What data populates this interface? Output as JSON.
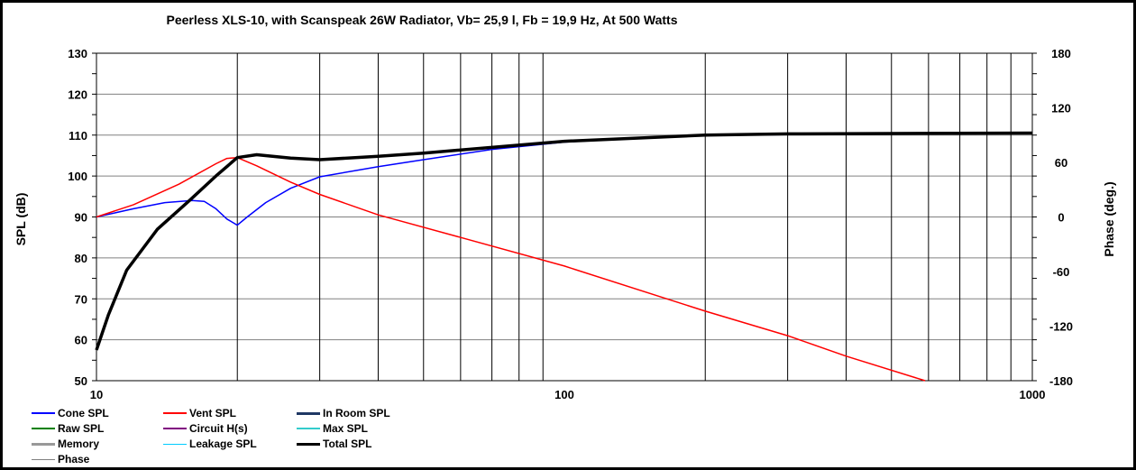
{
  "chart_data": {
    "type": "line",
    "title": "Peerless XLS-10,  with Scanspeak 26W Radiator, Vb= 25,9 l,  Fb = 19,9 Hz,  At 500 Watts",
    "ylabel": "SPL (dB)",
    "y2label": "Phase (deg.)",
    "xscale": "log",
    "xlim": [
      10,
      1000
    ],
    "ylim": [
      50,
      130
    ],
    "y2lim": [
      -180,
      180
    ],
    "xticks": [
      "10",
      "100",
      "1000"
    ],
    "yticks": [
      "130",
      "120",
      "110",
      "100",
      "90",
      "80",
      "70",
      "60",
      "50"
    ],
    "y2ticks": [
      "180",
      "120",
      "60",
      "0",
      "-60",
      "-120",
      "-180"
    ],
    "grid": true,
    "series": [
      {
        "name": "Cone SPL",
        "color": "#0000ff",
        "x": [
          10,
          12,
          14,
          16,
          17,
          18,
          19,
          20,
          21,
          23,
          26,
          30,
          40,
          50,
          70,
          100,
          200,
          1000
        ],
        "y": [
          90,
          92,
          93.5,
          94,
          93.8,
          92,
          89.5,
          88,
          90,
          93.5,
          97,
          99.8,
          102.3,
          104,
          106.5,
          108.3,
          110,
          110.5
        ]
      },
      {
        "name": "Vent SPL",
        "color": "#ff0000",
        "x": [
          10,
          12,
          15,
          18,
          19,
          20,
          22,
          26,
          30,
          40,
          60,
          100,
          200,
          300,
          400,
          590
        ],
        "y": [
          90,
          93,
          98,
          103,
          104.3,
          104.5,
          102.5,
          98.5,
          95.5,
          90.5,
          85,
          78,
          67,
          61,
          56,
          50
        ]
      },
      {
        "name": "Total SPL",
        "color": "#000000",
        "x": [
          10,
          10.6,
          11.6,
          13.5,
          15.8,
          18,
          20,
          22,
          26,
          30,
          40,
          50,
          100,
          200,
          300,
          1000
        ],
        "y": [
          57.5,
          66,
          77,
          87,
          94,
          100,
          104.5,
          105.2,
          104.4,
          104,
          104.8,
          105.6,
          108.5,
          110,
          110.3,
          110.5
        ]
      }
    ],
    "legend": [
      {
        "label": "Cone SPL",
        "color": "#0000ff"
      },
      {
        "label": "Vent SPL",
        "color": "#ff0000"
      },
      {
        "label": "In Room SPL",
        "color": "#1f3864"
      },
      {
        "label": "Raw SPL",
        "color": "#008000"
      },
      {
        "label": "Circuit H(s)",
        "color": "#800080"
      },
      {
        "label": "Max SPL",
        "color": "#33cccc"
      },
      {
        "label": "Memory",
        "color": "#999999"
      },
      {
        "label": "Leakage SPL",
        "color": "#00ccff"
      },
      {
        "label": "Total SPL",
        "color": "#000000"
      },
      {
        "label": "Phase",
        "color": "#808080"
      }
    ]
  }
}
